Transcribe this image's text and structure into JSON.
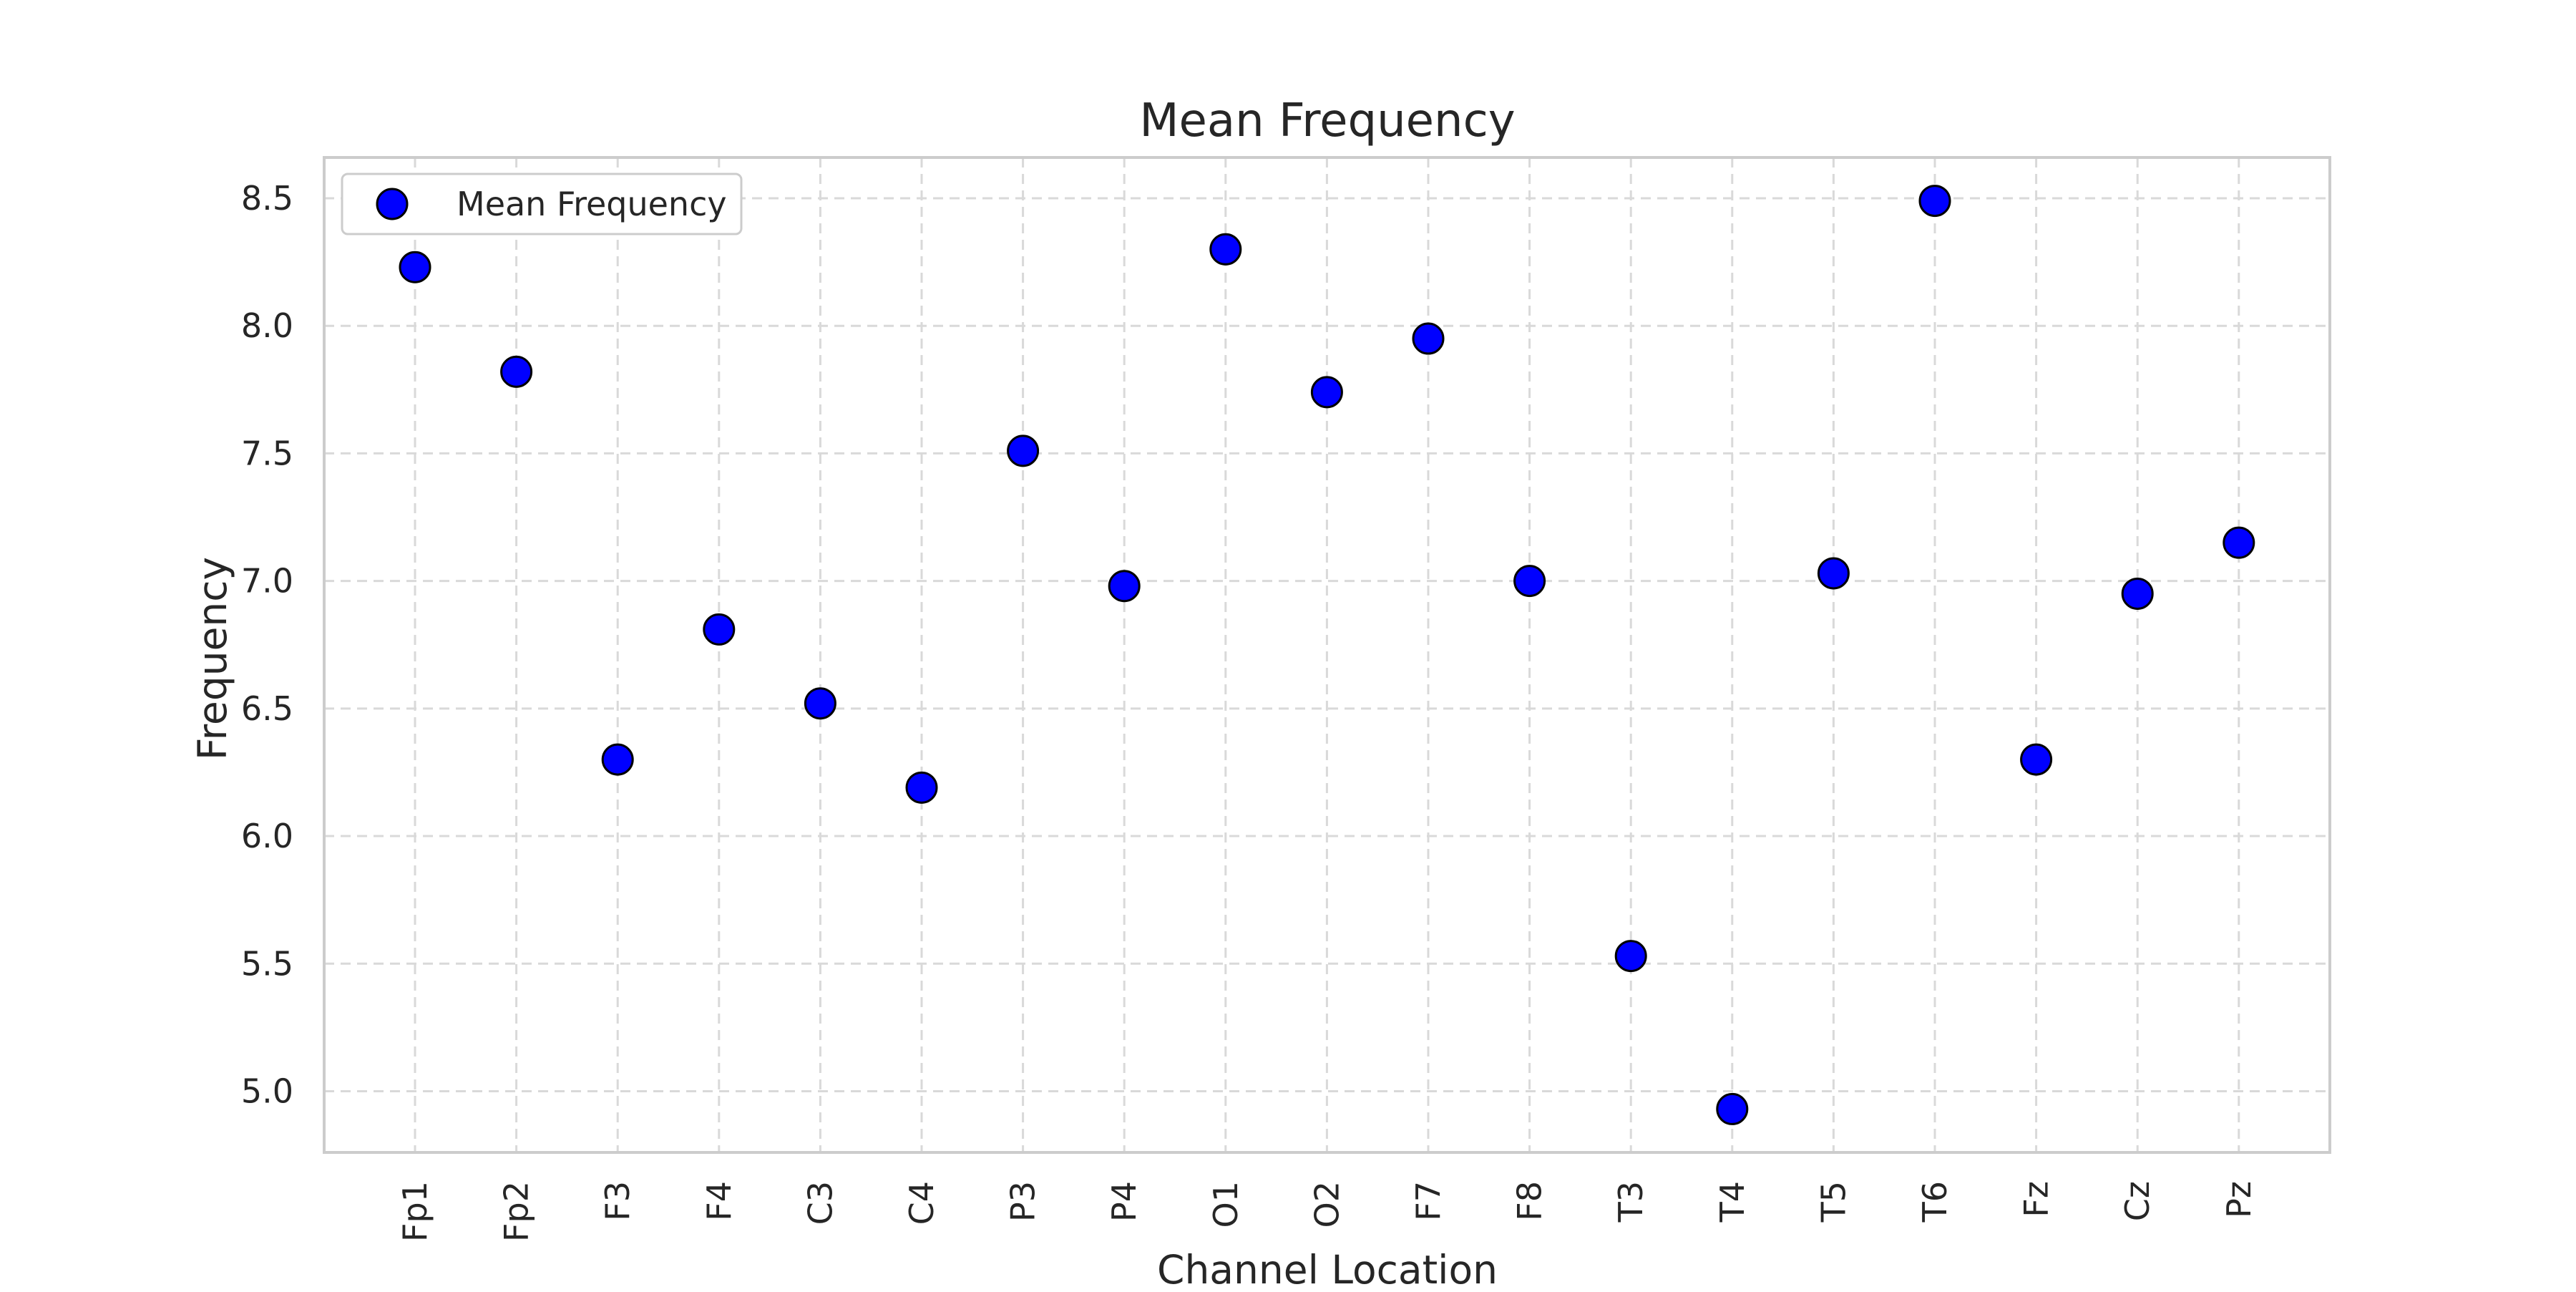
{
  "chart_data": {
    "type": "scatter",
    "title": "Mean Frequency",
    "xlabel": "Channel Location",
    "ylabel": "Frequency",
    "categories": [
      "Fp1",
      "Fp2",
      "F3",
      "F4",
      "C3",
      "C4",
      "P3",
      "P4",
      "O1",
      "O2",
      "F7",
      "F8",
      "T3",
      "T4",
      "T5",
      "T6",
      "Fz",
      "Cz",
      "Pz"
    ],
    "series": [
      {
        "name": "Mean Frequency",
        "values": [
          8.23,
          7.82,
          6.3,
          6.81,
          6.52,
          6.19,
          7.51,
          6.98,
          8.3,
          7.74,
          7.95,
          7.0,
          5.53,
          4.93,
          7.03,
          8.49,
          6.3,
          6.95,
          7.15
        ]
      }
    ],
    "ylim": [
      4.76,
      8.66
    ],
    "yticks": [
      5.0,
      5.5,
      6.0,
      6.5,
      7.0,
      7.5,
      8.0,
      8.5
    ],
    "ytick_labels": [
      "5.0",
      "5.5",
      "6.0",
      "6.5",
      "7.0",
      "7.5",
      "8.0",
      "8.5"
    ],
    "grid": true,
    "legend_position": "top-left",
    "colors": {
      "marker_fill": "#0000ff",
      "marker_edge": "#000000",
      "grid": "#d9d9d9",
      "frame": "#cccccc"
    }
  }
}
